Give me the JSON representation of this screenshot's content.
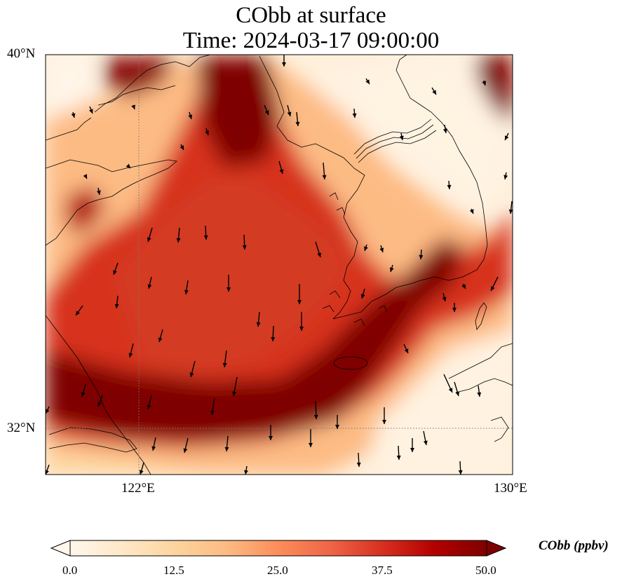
{
  "title": {
    "line1": "CObb at surface",
    "line2": "Time: 2024-03-17 09:00:00"
  },
  "map": {
    "extent": {
      "lon_min": 120,
      "lon_max": 130,
      "lat_min": 31,
      "lat_max": 40
    },
    "gridlines": {
      "lon": [
        122
      ],
      "lat": [
        32
      ],
      "style": "dotted"
    },
    "lon_tick_labels": [
      "122°E",
      "130°E"
    ],
    "lat_tick_labels": [
      "40°N",
      "32°N"
    ],
    "field": "CObb",
    "units": "ppbv",
    "wind_vectors": "southward to south-southeast flow over the Yellow Sea"
  },
  "colorbar": {
    "label": "CObb (ppbv)",
    "ticks": [
      "0.0",
      "12.5",
      "25.0",
      "37.5",
      "50.0"
    ],
    "range": [
      0,
      50
    ],
    "extend": "both",
    "colormap": "OrRd",
    "colors": [
      "#fff7ec",
      "#fee8c8",
      "#fdd49e",
      "#fdbb84",
      "#fc8d59",
      "#ef6548",
      "#d7301f",
      "#b30000",
      "#7f0000"
    ]
  }
}
